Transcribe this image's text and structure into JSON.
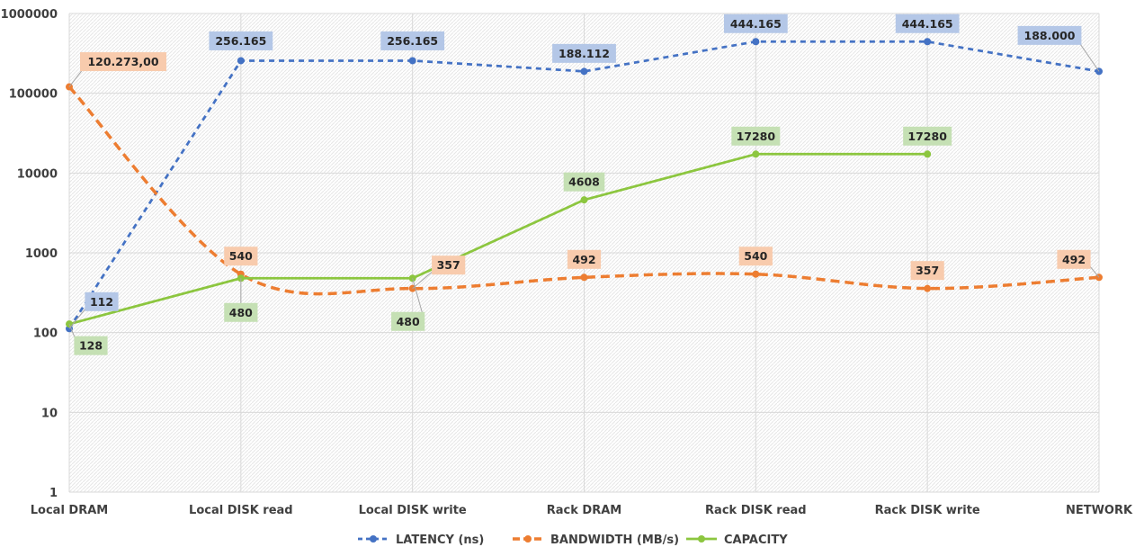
{
  "chart_data": {
    "type": "line",
    "title": "",
    "xlabel": "",
    "ylabel": "",
    "y_scale": "log",
    "ylim": [
      1,
      1000000
    ],
    "y_ticks": [
      "1",
      "10",
      "100",
      "1000",
      "10000",
      "100000",
      "1000000"
    ],
    "grid": true,
    "legend_position": "bottom",
    "categories": [
      "Local DRAM",
      "Local DISK read",
      "Local DISK write",
      "Rack DRAM",
      "Rack DISK read",
      "Rack DISK write",
      "NETWORK"
    ],
    "series": [
      {
        "name": "LATENCY (ns)",
        "color": "#4472C4",
        "label_bg": "#B4C7E7",
        "dash": true,
        "values": [
          112,
          256165,
          256165,
          188112,
          444165,
          444165,
          188000
        ],
        "labels": [
          "112",
          "256.165",
          "256.165",
          "188.112",
          "444.165",
          "444.165",
          "188.000"
        ]
      },
      {
        "name": "BANDWIDTH (MB/s)",
        "color": "#ED7D31",
        "label_bg": "#F8CBAD",
        "dash": true,
        "values": [
          120273,
          540,
          357,
          492,
          540,
          357,
          492
        ],
        "labels": [
          "120.273,00",
          "540",
          "357",
          "492",
          "540",
          "357",
          "492"
        ]
      },
      {
        "name": "CAPACITY",
        "color": "#8CC63F",
        "label_bg": "#C5E0B4",
        "dash": false,
        "values": [
          128,
          480,
          480,
          4608,
          17280,
          17280,
          null
        ],
        "labels": [
          "128",
          "480",
          "480",
          "4608",
          "17280",
          "17280",
          null
        ]
      }
    ]
  }
}
